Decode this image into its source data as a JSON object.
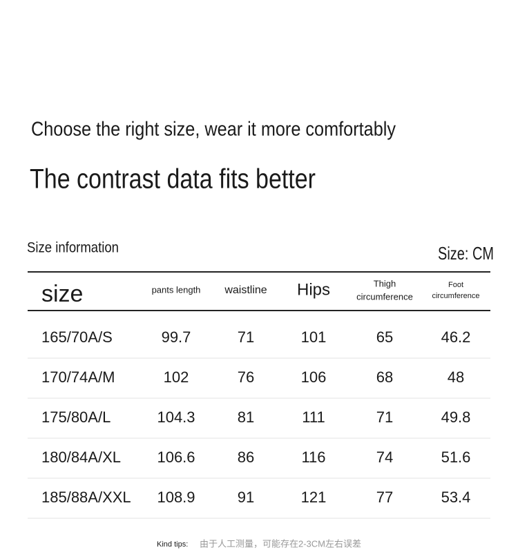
{
  "header": {
    "subtitle": "Choose the right size, wear it more comfortably",
    "title": "The contrast data fits better"
  },
  "table": {
    "caption": "Size information",
    "unit": "Size: CM",
    "columns": [
      [
        "size"
      ],
      [
        "pants length"
      ],
      [
        "waistline"
      ],
      [
        "Hips"
      ],
      [
        "Thigh",
        "circumference"
      ],
      [
        "Foot",
        "circumference"
      ]
    ],
    "rows": [
      [
        "165/70A/S",
        "99.7",
        "71",
        "101",
        "65",
        "46.2"
      ],
      [
        "170/74A/M",
        "102",
        "76",
        "106",
        "68",
        "48"
      ],
      [
        "175/80A/L",
        "104.3",
        "81",
        "111",
        "71",
        "49.8"
      ],
      [
        "180/84A/XL",
        "106.6",
        "86",
        "116",
        "74",
        "51.6"
      ],
      [
        "185/88A/XXL",
        "108.9",
        "91",
        "121",
        "77",
        "53.4"
      ]
    ]
  },
  "footer": {
    "label": "Kind tips:",
    "text": "由于人工测量，可能存在2-3CM左右误差"
  }
}
